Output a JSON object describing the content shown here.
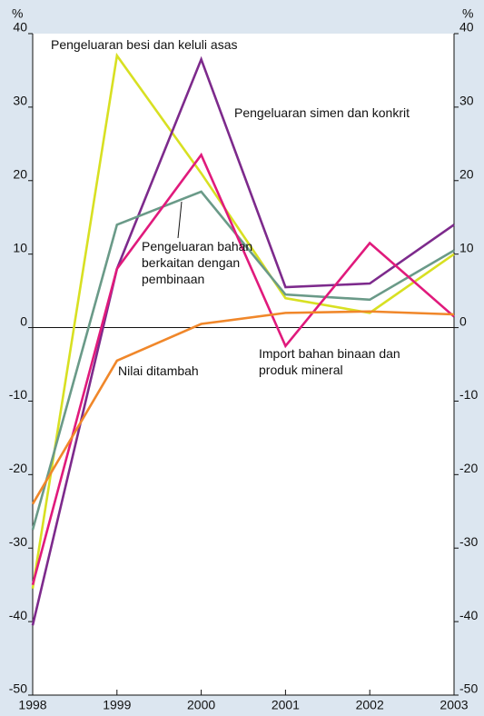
{
  "chart_data": {
    "type": "line",
    "y_unit_left": "%",
    "y_unit_right": "%",
    "x": [
      1998,
      1999,
      2000,
      2001,
      2002,
      2003
    ],
    "xlim": [
      1998,
      2003
    ],
    "xticks": [
      1998,
      1999,
      2000,
      2001,
      2002,
      2003
    ],
    "ylim": [
      -50,
      40
    ],
    "yticks": [
      -50,
      -40,
      -30,
      -20,
      -10,
      0,
      10,
      20,
      30,
      40
    ],
    "series": [
      {
        "name": "Pengeluaran besi dan keluli asas",
        "color": "#d8e022",
        "values": [
          -35.5,
          37,
          21,
          4,
          2,
          10
        ]
      },
      {
        "name": "Pengeluaran simen dan konkrit",
        "color": "#7d2a8c",
        "values": [
          -40.5,
          8,
          36.5,
          5.5,
          6,
          14
        ]
      },
      {
        "name": "Pengeluaran bahan berkaitan dengan pembinaan",
        "color": "#6a9a88",
        "values": [
          -27.5,
          14,
          18.5,
          4.5,
          3.8,
          10.5
        ]
      },
      {
        "name": "Import bahan binaan dan produk mineral",
        "color": "#e01a7c",
        "values": [
          -35,
          8,
          23.5,
          -2.5,
          11.5,
          1.5
        ]
      },
      {
        "name": "Nilai ditambah",
        "color": "#f0872a",
        "values": [
          -24,
          -4.5,
          0.5,
          2,
          2.2,
          1.8
        ]
      }
    ]
  }
}
